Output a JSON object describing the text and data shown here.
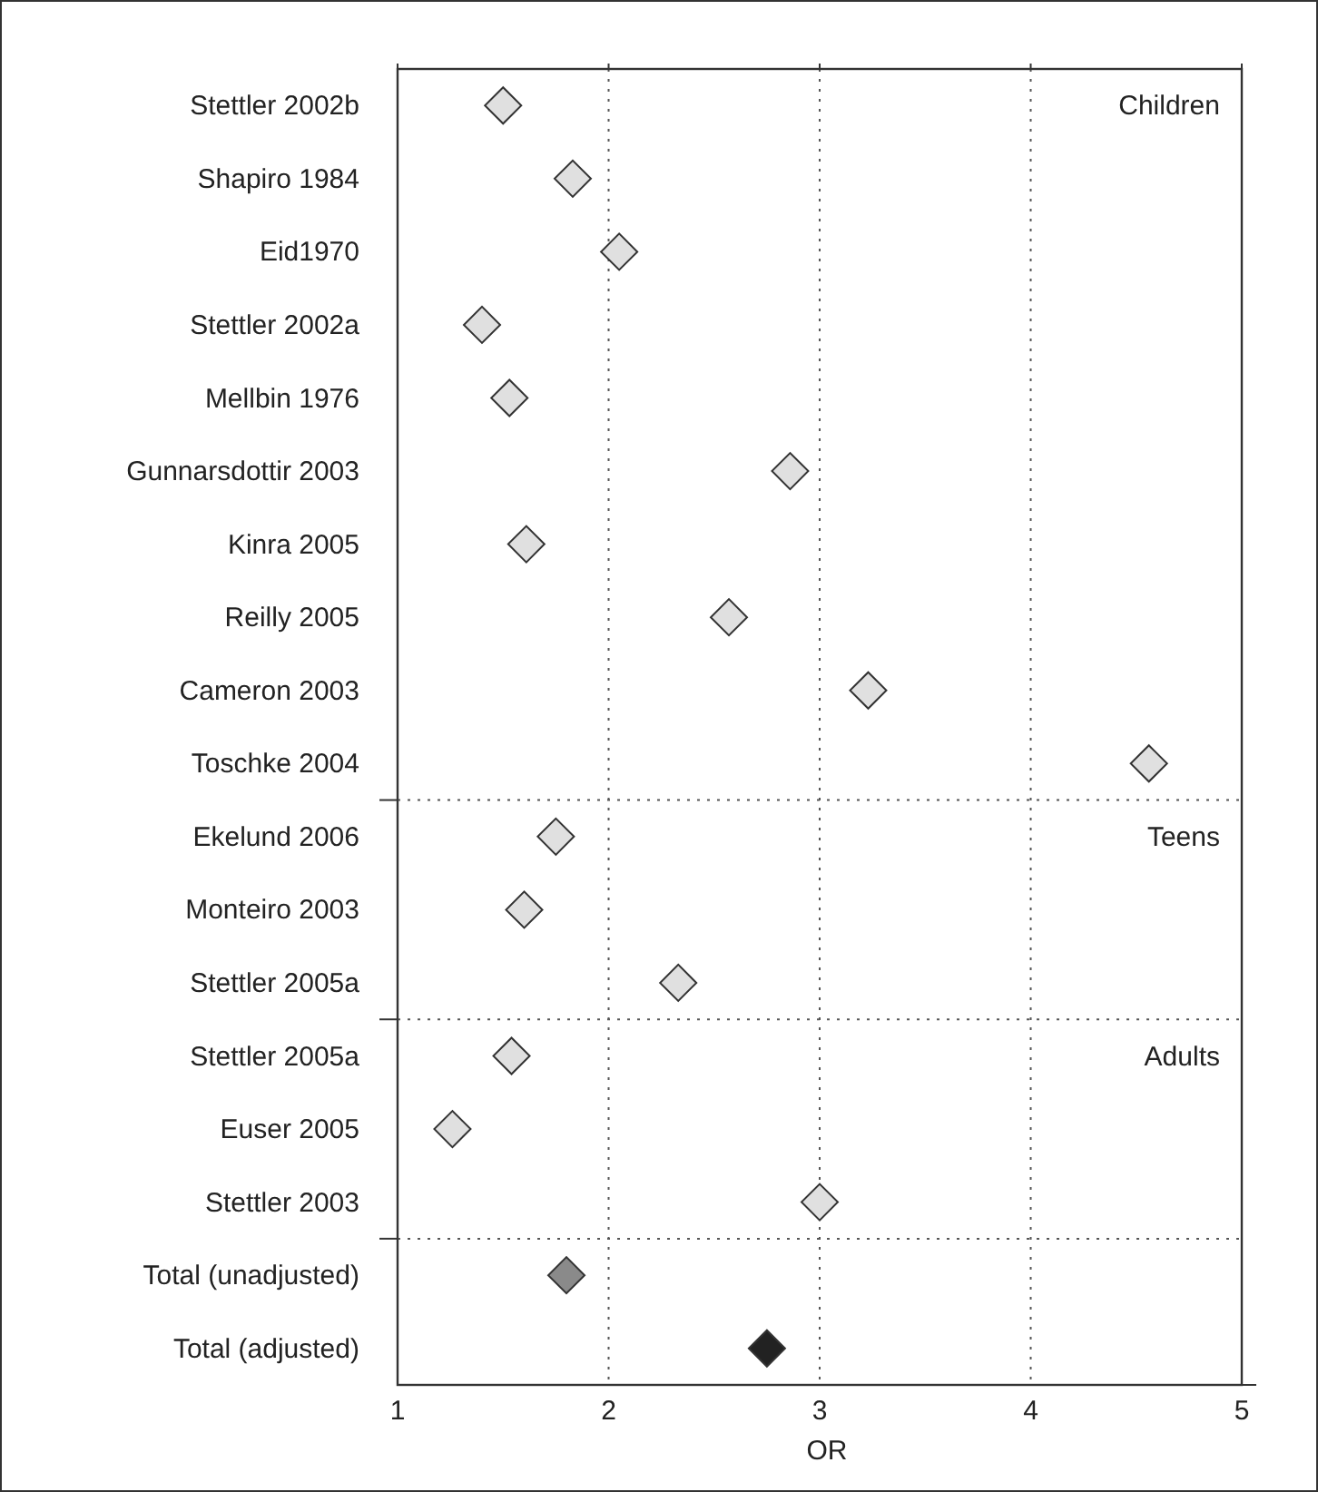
{
  "chart_data": {
    "type": "scatter",
    "orientation": "horizontal",
    "xlabel": "OR",
    "categories": [
      "Stettler 2002b",
      "Shapiro 1984",
      "Eid1970",
      "Stettler 2002a",
      "Mellbin 1976",
      "Gunnarsdottir 2003",
      "Kinra 2005",
      "Reilly 2005",
      "Cameron 2003",
      "Toschke 2004",
      "Ekelund 2006",
      "Monteiro 2003",
      "Stettler 2005a",
      "Stettler 2005a",
      "Euser 2005",
      "Stettler 2003",
      "Total (unadjusted)",
      "Total (adjusted)"
    ],
    "values": [
      1.5,
      1.83,
      2.05,
      1.4,
      1.53,
      2.86,
      1.61,
      2.57,
      3.23,
      4.56,
      1.75,
      1.6,
      2.33,
      1.54,
      1.26,
      3.0,
      1.8,
      2.75
    ],
    "colors": [
      "#e0e0e0",
      "#e0e0e0",
      "#e0e0e0",
      "#e0e0e0",
      "#e0e0e0",
      "#e0e0e0",
      "#e0e0e0",
      "#e0e0e0",
      "#e0e0e0",
      "#e0e0e0",
      "#e0e0e0",
      "#e0e0e0",
      "#e0e0e0",
      "#e0e0e0",
      "#e0e0e0",
      "#e0e0e0",
      "#8a8a8a",
      "#222222"
    ],
    "marker": "diamond",
    "xlim": [
      1,
      5
    ],
    "xticks": [
      1,
      2,
      3,
      4,
      5
    ],
    "grid": "x",
    "annotations": [
      "Children",
      "Teens",
      "Adults"
    ]
  }
}
